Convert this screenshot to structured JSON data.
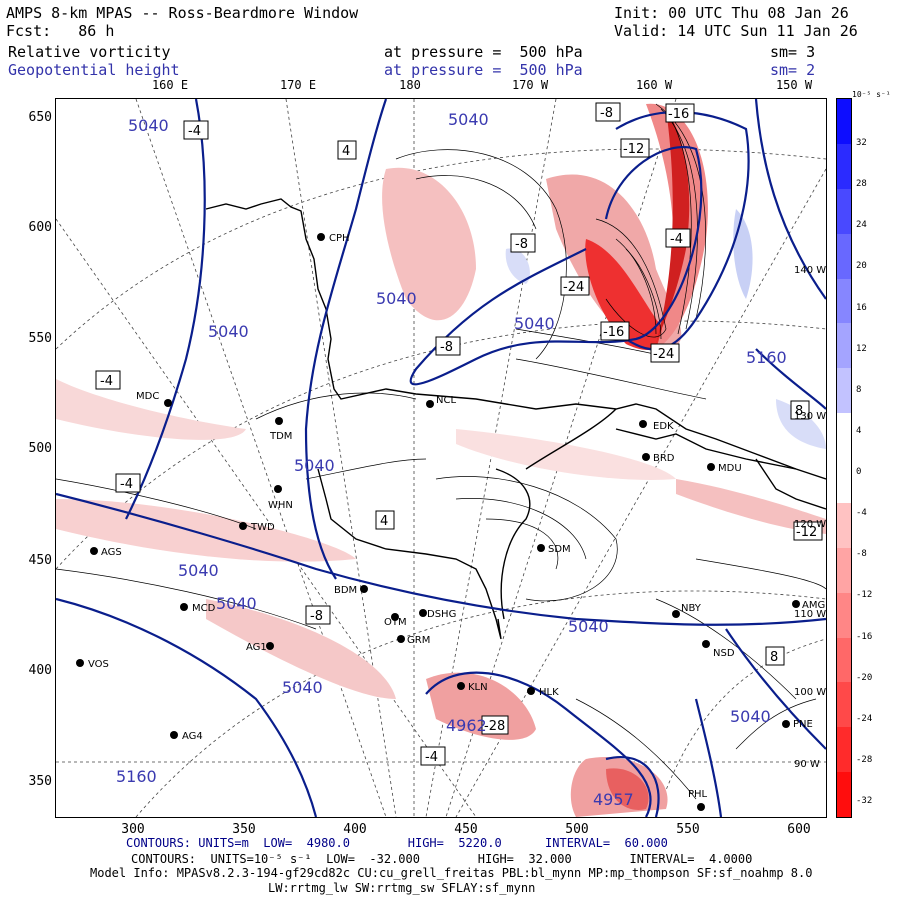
{
  "header": {
    "title": "AMPS 8-km MPAS -- Ross-Beardmore Window",
    "fcst": "Fcst:   86 h",
    "init": "Init: 00 UTC Thu 08 Jan 26",
    "valid": "Valid: 14 UTC Sun 11 Jan 26",
    "field1": {
      "name": "Relative vorticity",
      "level": "at pressure =  500 hPa",
      "sm": "sm= 3"
    },
    "field2": {
      "name": "Geopotential height",
      "level": "at pressure =  500 hPa",
      "sm": "sm= 2"
    }
  },
  "axes": {
    "lon_labels": [
      "160 E",
      "170 E",
      "180",
      "170 W",
      "160 W",
      "150 W"
    ],
    "y_ticks": [
      "650",
      "600",
      "550",
      "500",
      "450",
      "400",
      "350"
    ],
    "x_ticks": [
      "300",
      "350",
      "400",
      "450",
      "500",
      "550",
      "600"
    ],
    "right_lon_labels": [
      "140 W",
      "130 W",
      "120 W",
      "110 W",
      "100 W",
      "90 W"
    ]
  },
  "colorbar": {
    "units": "10⁻⁵ s⁻¹",
    "ticks": [
      "32",
      "28",
      "24",
      "20",
      "16",
      "12",
      "8",
      "4",
      "0",
      "-4",
      "-8",
      "-12",
      "-16",
      "-20",
      "-24",
      "-28",
      "-32"
    ],
    "colors_top": "#0000ff",
    "colors_bottom": "#ff0000"
  },
  "footer": {
    "line1": "CONTOURS: UNITS=m  LOW=  4980.0        HIGH=  5220.0      INTERVAL=  60.000",
    "line2": "CONTOURS:  UNITS=10⁻⁵ s⁻¹  LOW=  -32.000        HIGH=  32.000        INTERVAL=  4.0000",
    "line3": "Model Info: MPASv8.2.3-194-gf29cd82c CU:cu_grell_freitas PBL:bl_mynn MP:mp_thompson SF:sf_noahmp 8.0",
    "line4": "LW:rrtmg_lw SW:rrtmg_sw SFLAY:sf_mynn"
  },
  "stations": [
    "MDC",
    "TDM",
    "WHN",
    "TWD",
    "AGS",
    "MCD",
    "AG1",
    "VOS",
    "AG4",
    "CPH",
    "NCL",
    "BDM",
    "OTM",
    "DSHG",
    "GRM",
    "KLN",
    "HLK",
    "SDM",
    "EDK",
    "BRD",
    "MDU",
    "NBY",
    "NSD",
    "PNE",
    "PHL",
    "AMG"
  ],
  "height_labels": [
    "5040",
    "5040",
    "5040",
    "5040",
    "5040",
    "5040",
    "5040",
    "5040",
    "5040",
    "5160",
    "5160",
    "4962",
    "4957",
    "5040",
    "5040"
  ],
  "vort_labels": [
    "-4",
    "-4",
    "-4",
    "-4",
    "-4",
    "-8",
    "-8",
    "-8",
    "-12",
    "-16",
    "-24",
    "-16",
    "-24",
    "-8",
    "-12",
    "-28",
    "4",
    "4",
    "8",
    "8"
  ]
}
